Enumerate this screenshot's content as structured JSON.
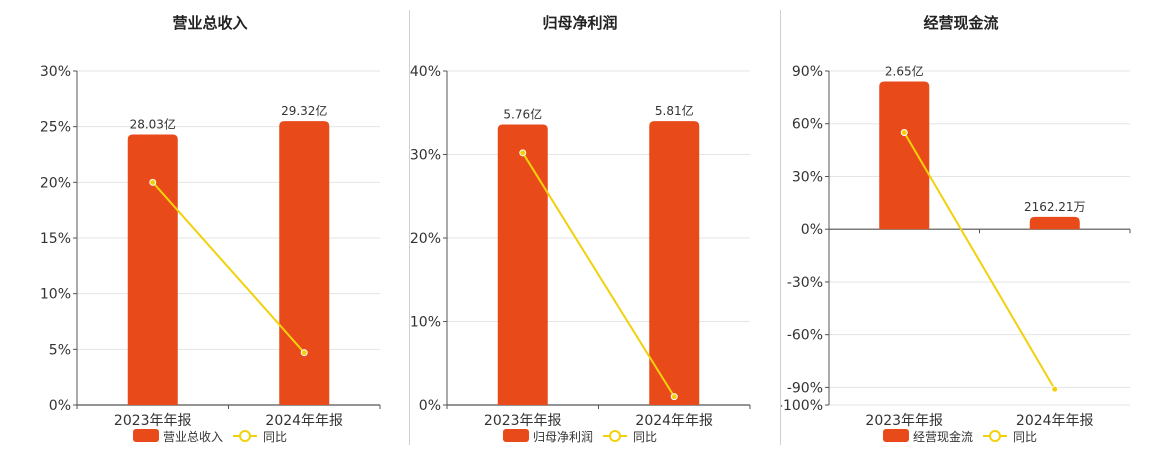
{
  "colors": {
    "bar": "#e84a1a",
    "line": "#f2d10c",
    "grid": "#e5e5e5",
    "axis": "#555555",
    "text": "#333333"
  },
  "legend": {
    "yoy_label": "同比"
  },
  "chart_data": [
    {
      "type": "bar",
      "title": "营业总收入",
      "categories": [
        "2023年年报",
        "2024年年报"
      ],
      "bar_axis_percent": [
        24.3,
        25.5
      ],
      "bar_labels": [
        "28.03亿",
        "29.32亿"
      ],
      "yoy_percent": [
        20.0,
        4.7
      ],
      "ylim": [
        0,
        30
      ],
      "yticks": [
        0,
        5,
        10,
        15,
        20,
        25,
        30
      ],
      "series": [
        {
          "name": "营业总收入",
          "kind": "bar"
        },
        {
          "name": "同比",
          "kind": "line"
        }
      ]
    },
    {
      "type": "bar",
      "title": "归母净利润",
      "categories": [
        "2023年年报",
        "2024年年报"
      ],
      "bar_axis_percent": [
        33.6,
        34.0
      ],
      "bar_labels": [
        "5.76亿",
        "5.81亿"
      ],
      "yoy_percent": [
        30.2,
        1.0
      ],
      "ylim": [
        0,
        40
      ],
      "yticks": [
        0,
        10,
        20,
        30,
        40
      ],
      "series": [
        {
          "name": "归母净利润",
          "kind": "bar"
        },
        {
          "name": "同比",
          "kind": "line"
        }
      ]
    },
    {
      "type": "bar",
      "title": "经营现金流",
      "categories": [
        "2023年年报",
        "2024年年报"
      ],
      "bar_axis_percent": [
        84.0,
        7.0
      ],
      "bar_labels": [
        "2.65亿",
        "2162.21万"
      ],
      "yoy_percent": [
        55.0,
        -91.0
      ],
      "ylim": [
        -100,
        90
      ],
      "yticks": [
        -100,
        -90,
        -60,
        -30,
        0,
        30,
        60,
        90
      ],
      "series": [
        {
          "name": "经营现金流",
          "kind": "bar"
        },
        {
          "name": "同比",
          "kind": "line"
        }
      ]
    }
  ]
}
